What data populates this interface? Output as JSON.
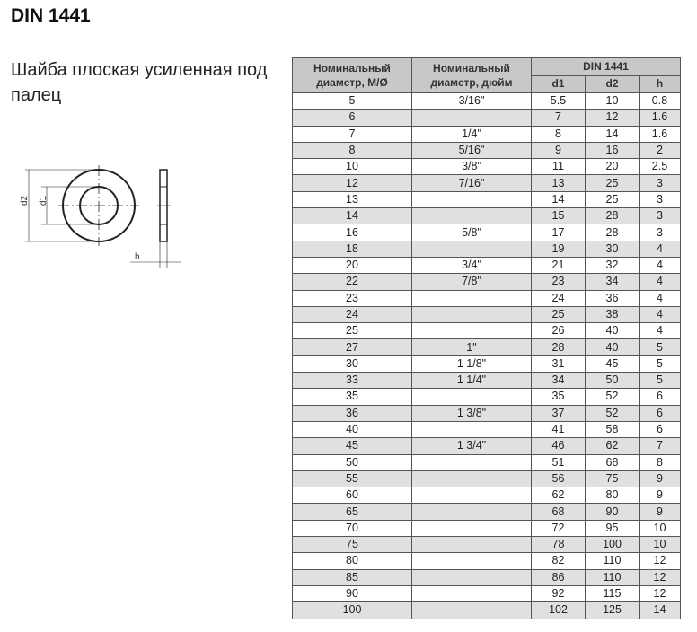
{
  "title": "DIN 1441",
  "subtitle": "Шайба плоская усиленная под палец",
  "diagram": {
    "labels": {
      "d2": "d2",
      "d1": "d1",
      "h": "h"
    }
  },
  "table": {
    "headers": {
      "metric": "Номинальный диаметр, М/Ø",
      "inch": "Номинальный диаметр, дюйм",
      "group": "DIN 1441",
      "d1": "d1",
      "d2": "d2",
      "h": "h"
    },
    "rows": [
      [
        "5",
        "3/16\"",
        "5.5",
        "10",
        "0.8"
      ],
      [
        "6",
        "",
        "7",
        "12",
        "1.6"
      ],
      [
        "7",
        "1/4\"",
        "8",
        "14",
        "1.6"
      ],
      [
        "8",
        "5/16\"",
        "9",
        "16",
        "2"
      ],
      [
        "10",
        "3/8\"",
        "11",
        "20",
        "2.5"
      ],
      [
        "12",
        "7/16\"",
        "13",
        "25",
        "3"
      ],
      [
        "13",
        "",
        "14",
        "25",
        "3"
      ],
      [
        "14",
        "",
        "15",
        "28",
        "3"
      ],
      [
        "16",
        "5/8\"",
        "17",
        "28",
        "3"
      ],
      [
        "18",
        "",
        "19",
        "30",
        "4"
      ],
      [
        "20",
        "3/4\"",
        "21",
        "32",
        "4"
      ],
      [
        "22",
        "7/8\"",
        "23",
        "34",
        "4"
      ],
      [
        "23",
        "",
        "24",
        "36",
        "4"
      ],
      [
        "24",
        "",
        "25",
        "38",
        "4"
      ],
      [
        "25",
        "",
        "26",
        "40",
        "4"
      ],
      [
        "27",
        "1\"",
        "28",
        "40",
        "5"
      ],
      [
        "30",
        "1 1/8\"",
        "31",
        "45",
        "5"
      ],
      [
        "33",
        "1 1/4\"",
        "34",
        "50",
        "5"
      ],
      [
        "35",
        "",
        "35",
        "52",
        "6"
      ],
      [
        "36",
        "1 3/8\"",
        "37",
        "52",
        "6"
      ],
      [
        "40",
        "",
        "41",
        "58",
        "6"
      ],
      [
        "45",
        "1 3/4\"",
        "46",
        "62",
        "7"
      ],
      [
        "50",
        "",
        "51",
        "68",
        "8"
      ],
      [
        "55",
        "",
        "56",
        "75",
        "9"
      ],
      [
        "60",
        "",
        "62",
        "80",
        "9"
      ],
      [
        "65",
        "",
        "68",
        "90",
        "9"
      ],
      [
        "70",
        "",
        "72",
        "95",
        "10"
      ],
      [
        "75",
        "",
        "78",
        "100",
        "10"
      ],
      [
        "80",
        "",
        "82",
        "110",
        "12"
      ],
      [
        "85",
        "",
        "86",
        "110",
        "12"
      ],
      [
        "90",
        "",
        "92",
        "115",
        "12"
      ],
      [
        "100",
        "",
        "102",
        "125",
        "14"
      ]
    ]
  }
}
